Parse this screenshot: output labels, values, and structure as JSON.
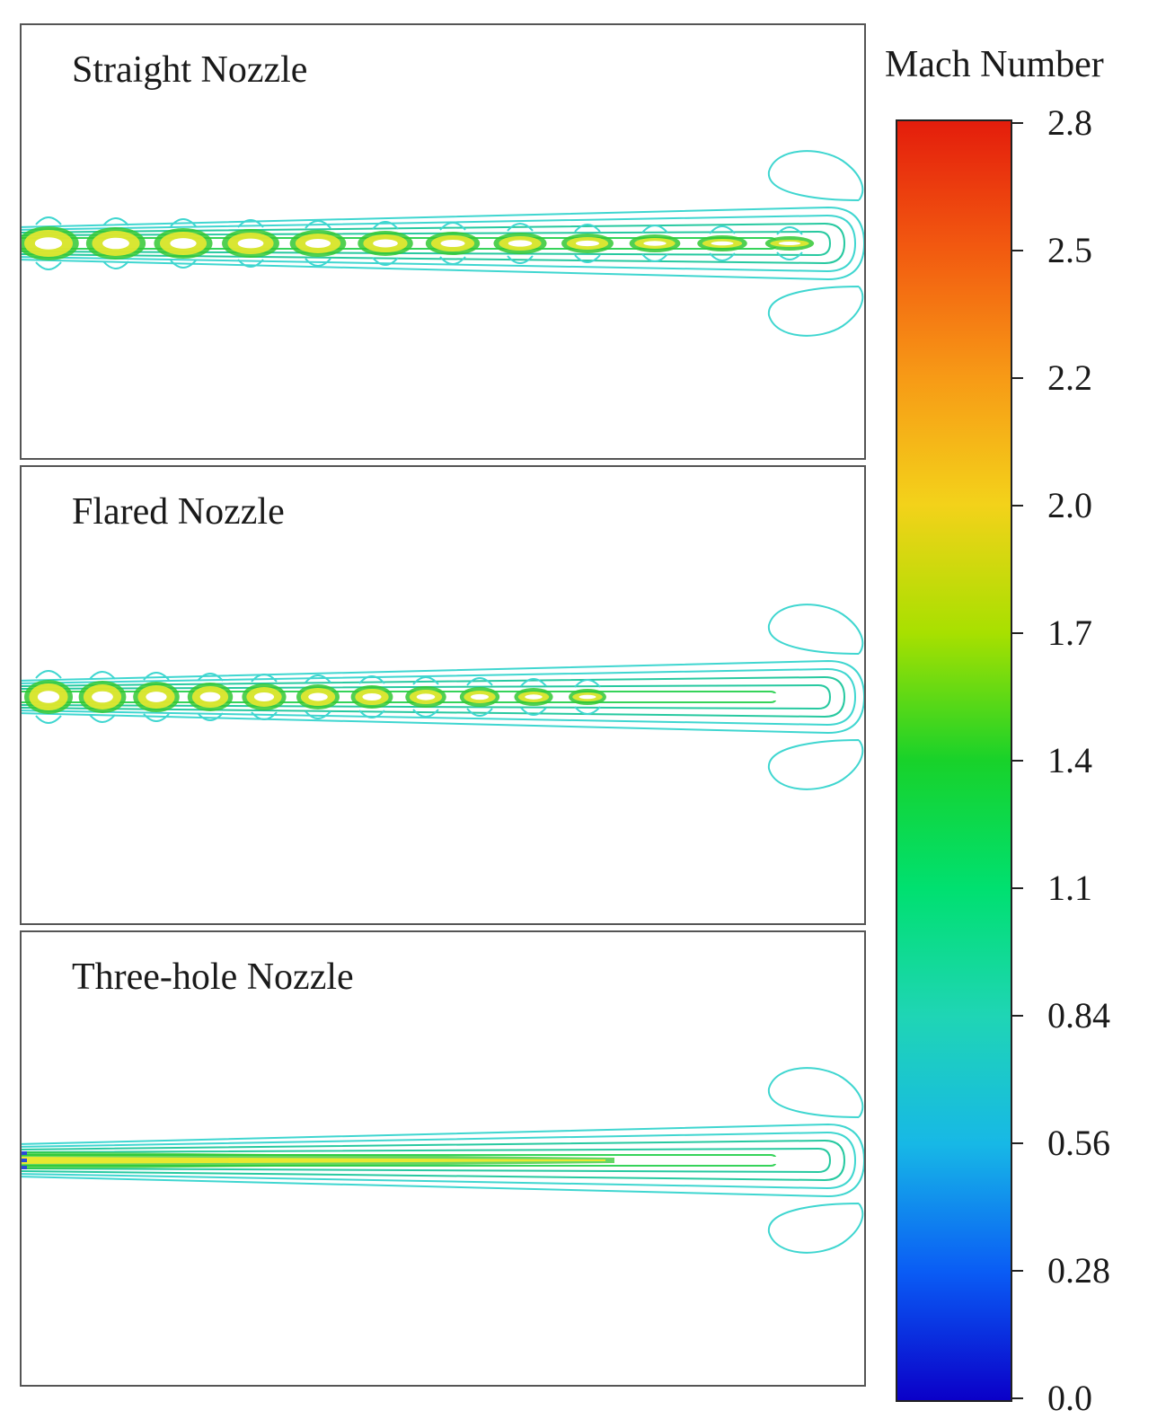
{
  "panels": [
    {
      "title": "Straight Nozzle",
      "inlet": "single"
    },
    {
      "title": "Flared Nozzle",
      "inlet": "flared"
    },
    {
      "title": "Three-hole Nozzle",
      "inlet": "three-hole"
    }
  ],
  "colorbar": {
    "title": "Mach Number",
    "tick_labels": [
      "2.8",
      "2.5",
      "2.2",
      "2.0",
      "1.7",
      "1.4",
      "1.1",
      "0.84",
      "0.56",
      "0.28",
      "0.0"
    ],
    "gradient_colors": [
      "#0b00c8",
      "#0a5cf5",
      "#17b8e6",
      "#1fd5b5",
      "#00e070",
      "#18d22a",
      "#a8e000",
      "#f3d21a",
      "#f79a16",
      "#f25a10",
      "#e41d0c"
    ]
  },
  "colors": {
    "contour_outer": "#3fd6d0",
    "contour_mid": "#27c9a0",
    "contour_inner": "#36d35a",
    "core_green": "#32c832",
    "core_yellow": "#e8e830"
  }
}
